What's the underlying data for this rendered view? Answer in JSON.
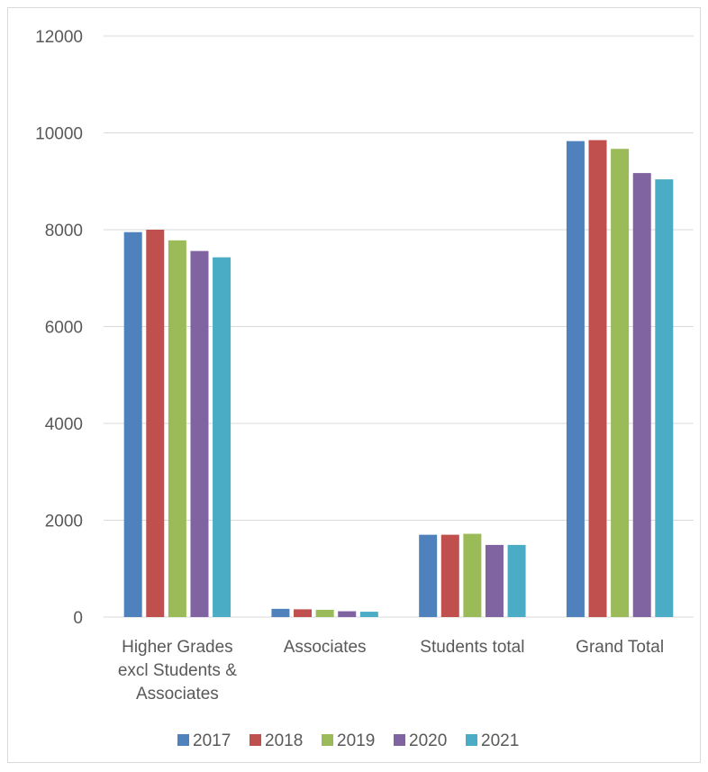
{
  "chart_data": {
    "type": "bar",
    "title": "",
    "xlabel": "",
    "ylabel": "",
    "categories": [
      [
        "Higher Grades",
        "excl Students &",
        "Associates"
      ],
      [
        "Associates"
      ],
      [
        "Students total"
      ],
      [
        "Grand Total"
      ]
    ],
    "ylim": [
      0,
      12000
    ],
    "yticks": [
      0,
      2000,
      4000,
      6000,
      8000,
      10000,
      12000
    ],
    "grid": true,
    "legend_position": "bottom",
    "series": [
      {
        "name": "2017",
        "color": "#4f81bd",
        "values": [
          7950,
          170,
          1700,
          9830
        ]
      },
      {
        "name": "2018",
        "color": "#c0504d",
        "values": [
          8000,
          160,
          1700,
          9850
        ]
      },
      {
        "name": "2019",
        "color": "#9bbb59",
        "values": [
          7780,
          150,
          1720,
          9670
        ]
      },
      {
        "name": "2020",
        "color": "#8064a2",
        "values": [
          7560,
          120,
          1490,
          9170
        ]
      },
      {
        "name": "2021",
        "color": "#4bacc6",
        "values": [
          7430,
          110,
          1490,
          9040
        ]
      }
    ]
  }
}
